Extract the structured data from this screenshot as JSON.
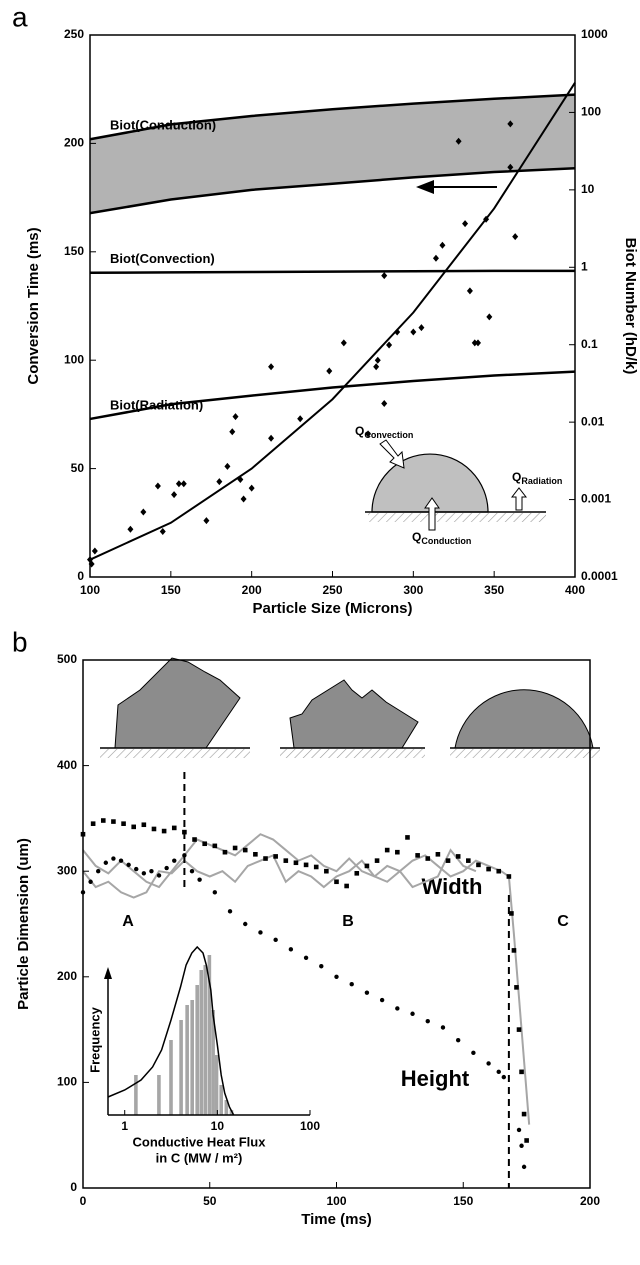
{
  "chart_data": [
    {
      "type": "scatter",
      "panel_label": "a",
      "xlabel": "Particle Size (Microns)",
      "ylabel": "Conversion Time (ms)",
      "y2label": "Biot Number (hD/k)",
      "xlim": [
        100,
        400
      ],
      "xticks": [
        100,
        150,
        200,
        250,
        300,
        350,
        400
      ],
      "ylim": [
        0,
        250
      ],
      "yticks": [
        0,
        50,
        100,
        150,
        200,
        250
      ],
      "y2lim": [
        0.0001,
        1000
      ],
      "y2scale": "log",
      "y2ticks": [
        0.0001,
        0.001,
        0.01,
        0.1,
        1,
        10,
        100,
        1000
      ],
      "series": [
        {
          "marker": "diamond",
          "color": "#000000",
          "x": [
            100,
            101,
            103,
            125,
            133,
            142,
            145,
            152,
            155,
            158,
            172,
            180,
            185,
            188,
            190,
            193,
            195,
            200,
            212,
            212,
            230,
            248,
            257,
            272,
            277,
            278,
            282,
            282,
            285,
            290,
            300,
            305,
            314,
            318,
            328,
            332,
            335,
            338,
            340,
            345,
            347,
            360,
            360,
            363
          ],
          "values": [
            8,
            6,
            12,
            22,
            30,
            42,
            21,
            38,
            43,
            43,
            26,
            44,
            51,
            67,
            74,
            45,
            36,
            41,
            64,
            97,
            73,
            95,
            108,
            66,
            97,
            100,
            80,
            139,
            107,
            113,
            113,
            115,
            147,
            153,
            201,
            163,
            132,
            108,
            108,
            165,
            120,
            189,
            209,
            157
          ]
        },
        {
          "type": "line",
          "color": "#000000",
          "x": [
            100,
            150,
            200,
            250,
            300,
            350,
            400
          ],
          "values": [
            8,
            25,
            50,
            82,
            122,
            170,
            228
          ]
        },
        {
          "name": "Biot(Conduction)",
          "type": "line",
          "axis": "y2",
          "color": "#000000",
          "fill_color": "#b3b3b3",
          "x": [
            100,
            150,
            200,
            250,
            300,
            350,
            400
          ],
          "values": [
            45,
            70,
            90,
            110,
            130,
            150,
            170
          ]
        },
        {
          "type": "line",
          "axis": "y2",
          "color": "#000000",
          "x": [
            100,
            150,
            200,
            250,
            300,
            350,
            400
          ],
          "values": [
            5,
            7.5,
            10,
            12,
            14.5,
            17,
            19
          ]
        },
        {
          "name": "Biot(Convection)",
          "type": "line",
          "axis": "y2",
          "color": "#000000",
          "x": [
            100,
            150,
            200,
            250,
            300,
            350,
            400
          ],
          "values": [
            0.85,
            0.86,
            0.87,
            0.88,
            0.89,
            0.9,
            0.9
          ]
        },
        {
          "name": "Biot(Radiation)",
          "type": "line",
          "axis": "y2",
          "color": "#000000",
          "x": [
            100,
            150,
            200,
            250,
            300,
            350,
            400
          ],
          "values": [
            0.011,
            0.017,
            0.022,
            0.028,
            0.034,
            0.04,
            0.045
          ]
        }
      ],
      "annotations": [
        {
          "text": "Q",
          "sub": "Convection"
        },
        {
          "text": "Q",
          "sub": "Radiation"
        },
        {
          "text": "Q",
          "sub": "Conduction"
        }
      ]
    },
    {
      "type": "scatter",
      "panel_label": "b",
      "xlabel": "Time (ms)",
      "ylabel": "Particle Dimension (um)",
      "xlim": [
        0,
        200
      ],
      "xticks": [
        0,
        50,
        100,
        150,
        200
      ],
      "ylim": [
        0,
        500
      ],
      "yticks": [
        0,
        100,
        200,
        300,
        400,
        500
      ],
      "vlines": [
        40,
        168
      ],
      "series": [
        {
          "type": "line",
          "color": "#a6a6a6",
          "x": [
            0,
            5,
            10,
            15,
            20,
            25,
            30,
            35,
            40,
            45,
            50,
            55,
            60,
            65,
            70,
            75,
            80,
            85,
            90,
            95,
            100,
            105,
            110,
            115,
            120,
            125,
            130,
            135,
            140,
            145,
            150,
            155,
            160,
            165,
            168,
            170,
            172,
            174,
            176
          ],
          "values": [
            320,
            305,
            298,
            310,
            300,
            290,
            285,
            300,
            315,
            330,
            325,
            320,
            315,
            325,
            335,
            330,
            320,
            310,
            315,
            305,
            300,
            312,
            300,
            295,
            305,
            300,
            310,
            315,
            305,
            295,
            300,
            310,
            305,
            300,
            295,
            240,
            180,
            120,
            60
          ]
        },
        {
          "type": "line",
          "color": "#a6a6a6",
          "x": [
            0,
            5,
            10,
            15,
            20,
            25,
            30,
            35,
            40,
            45,
            50,
            55,
            60,
            65,
            70,
            75,
            80,
            85,
            90,
            95,
            100,
            105,
            110,
            115,
            120,
            125,
            130,
            135,
            140,
            145,
            150,
            155
          ],
          "values": [
            300,
            285,
            290,
            280,
            275,
            280,
            300,
            298,
            310,
            300,
            295,
            300,
            290,
            305,
            310,
            315,
            290,
            300,
            295,
            285,
            295,
            300,
            310,
            295,
            290,
            300,
            285,
            290,
            295,
            320,
            305,
            300
          ]
        },
        {
          "name": "Width",
          "marker": "square",
          "color": "#000000",
          "x": [
            0,
            4,
            8,
            12,
            16,
            20,
            24,
            28,
            32,
            36,
            40,
            44,
            48,
            52,
            56,
            60,
            64,
            68,
            72,
            76,
            80,
            84,
            88,
            92,
            96,
            100,
            104,
            108,
            112,
            116,
            120,
            124,
            128,
            132,
            136,
            140,
            144,
            148,
            152,
            156,
            160,
            164,
            168,
            169,
            170,
            171,
            172,
            173,
            174,
            175
          ],
          "values": [
            335,
            345,
            348,
            347,
            345,
            342,
            344,
            340,
            338,
            341,
            337,
            330,
            326,
            324,
            318,
            322,
            320,
            316,
            312,
            314,
            310,
            308,
            306,
            304,
            300,
            290,
            286,
            298,
            305,
            310,
            320,
            318,
            332,
            315,
            312,
            316,
            310,
            314,
            310,
            306,
            302,
            300,
            295,
            260,
            225,
            190,
            150,
            110,
            70,
            45
          ]
        },
        {
          "name": "Height",
          "marker": "circle",
          "color": "#000000",
          "x": [
            0,
            3,
            6,
            9,
            12,
            15,
            18,
            21,
            24,
            27,
            30,
            33,
            36,
            40,
            43,
            46,
            52,
            58,
            64,
            70,
            76,
            82,
            88,
            94,
            100,
            106,
            112,
            118,
            124,
            130,
            136,
            142,
            148,
            154,
            160,
            164,
            166,
            172,
            173,
            174
          ],
          "values": [
            280,
            290,
            300,
            308,
            312,
            310,
            306,
            302,
            298,
            300,
            296,
            303,
            310,
            315,
            300,
            292,
            280,
            262,
            250,
            242,
            235,
            226,
            218,
            210,
            200,
            193,
            185,
            178,
            170,
            165,
            158,
            152,
            140,
            128,
            118,
            110,
            105,
            55,
            40,
            20
          ]
        }
      ],
      "annotations": [
        "A",
        "B",
        "C"
      ]
    },
    {
      "type": "bar",
      "xlabel": [
        "Conductive Heat Flux",
        "in C (MW / m²)"
      ],
      "ylabel": "Frequency",
      "xscale": "log",
      "xlim": [
        0.66,
        100
      ],
      "xticks": [
        1,
        10,
        100
      ],
      "ylim": [
        0,
        170
      ],
      "color": "#a6a6a6",
      "x": [
        1.32,
        2.34,
        3.16,
        4.06,
        4.72,
        5.35,
        6.06,
        6.7,
        7.4,
        8.2,
        9.0,
        9.8,
        11,
        12.5,
        14.2
      ],
      "values": [
        40,
        40,
        75,
        95,
        110,
        115,
        130,
        145,
        150,
        160,
        105,
        60,
        30,
        15,
        5
      ],
      "fit": {
        "color": "#000000",
        "x": [
          0.66,
          1,
          1.5,
          2,
          2.5,
          3.16,
          4,
          4.6,
          5.3,
          6.06,
          7,
          7.6,
          8.5,
          9,
          10,
          11,
          12,
          13.5,
          15
        ],
        "values": [
          18,
          25,
          35,
          48,
          65,
          95,
          128,
          150,
          162,
          168,
          162,
          150,
          125,
          100,
          70,
          40,
          22,
          8,
          0
        ]
      }
    }
  ]
}
